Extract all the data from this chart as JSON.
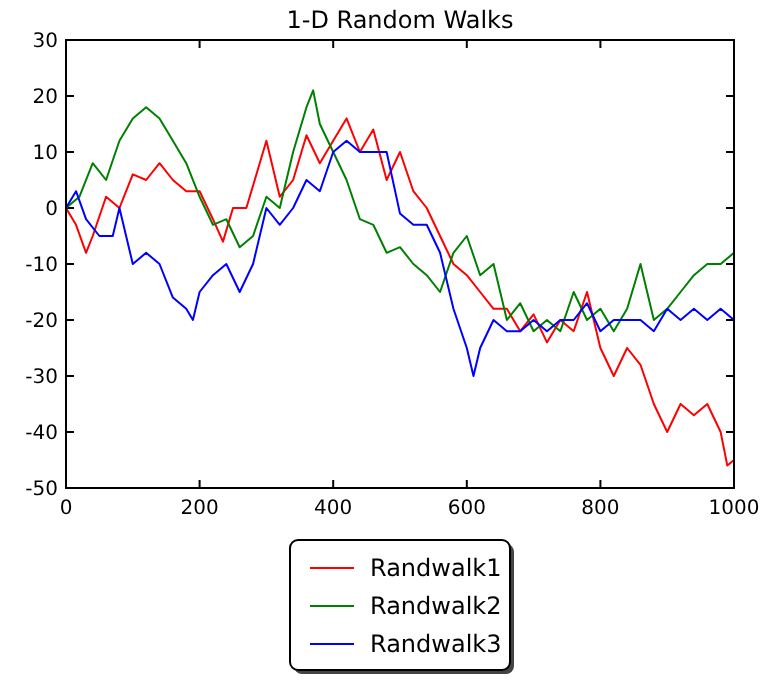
{
  "chart_data": {
    "type": "line",
    "title": "1-D Random Walks",
    "xlim": [
      0,
      1000
    ],
    "xticks": [
      0,
      200,
      400,
      600,
      800,
      1000
    ],
    "ylim": [
      -50,
      30
    ],
    "yticks": [
      -50,
      -40,
      -30,
      -20,
      -10,
      0,
      10,
      20,
      30
    ],
    "grid": false,
    "legend": "bottom",
    "series": [
      {
        "name": "Randwalk1",
        "color": "#ff0000",
        "x": [
          0,
          15,
          30,
          40,
          60,
          80,
          100,
          120,
          140,
          160,
          180,
          200,
          220,
          235,
          250,
          270,
          290,
          300,
          320,
          340,
          360,
          380,
          400,
          420,
          440,
          460,
          480,
          500,
          520,
          540,
          560,
          580,
          600,
          620,
          640,
          660,
          680,
          700,
          720,
          740,
          760,
          780,
          790,
          800,
          820,
          840,
          860,
          880,
          900,
          920,
          940,
          960,
          980,
          990,
          1000
        ],
        "values": [
          0,
          -3,
          -8,
          -5,
          2,
          0,
          6,
          5,
          8,
          5,
          3,
          3,
          -2,
          -6,
          0,
          0,
          8,
          12,
          2,
          5,
          13,
          8,
          12,
          16,
          10,
          14,
          5,
          10,
          3,
          0,
          -5,
          -10,
          -12,
          -15,
          -18,
          -18,
          -22,
          -19,
          -24,
          -20,
          -22,
          -15,
          -20,
          -25,
          -30,
          -25,
          -28,
          -35,
          -40,
          -35,
          -37,
          -35,
          -40,
          -46,
          -45
        ]
      },
      {
        "name": "Randwalk2",
        "color": "#008000",
        "x": [
          0,
          20,
          40,
          60,
          80,
          100,
          120,
          140,
          160,
          180,
          200,
          220,
          240,
          260,
          280,
          300,
          320,
          340,
          360,
          370,
          380,
          400,
          420,
          440,
          460,
          480,
          500,
          520,
          540,
          560,
          580,
          600,
          620,
          640,
          660,
          680,
          700,
          720,
          740,
          760,
          780,
          800,
          820,
          840,
          860,
          880,
          900,
          920,
          940,
          960,
          980,
          1000
        ],
        "values": [
          0,
          2,
          8,
          5,
          12,
          16,
          18,
          16,
          12,
          8,
          2,
          -3,
          -2,
          -7,
          -5,
          2,
          0,
          10,
          18,
          21,
          15,
          10,
          5,
          -2,
          -3,
          -8,
          -7,
          -10,
          -12,
          -15,
          -8,
          -5,
          -12,
          -10,
          -20,
          -17,
          -22,
          -20,
          -22,
          -15,
          -20,
          -18,
          -22,
          -18,
          -10,
          -20,
          -18,
          -15,
          -12,
          -10,
          -10,
          -8
        ]
      },
      {
        "name": "Randwalk3",
        "color": "#0000ff",
        "x": [
          0,
          15,
          30,
          50,
          70,
          80,
          100,
          120,
          140,
          160,
          180,
          190,
          200,
          220,
          240,
          260,
          280,
          300,
          320,
          340,
          360,
          380,
          400,
          420,
          440,
          460,
          480,
          500,
          520,
          540,
          560,
          580,
          600,
          610,
          620,
          640,
          660,
          680,
          700,
          720,
          740,
          760,
          780,
          800,
          820,
          840,
          860,
          880,
          900,
          920,
          940,
          960,
          980,
          1000
        ],
        "values": [
          0,
          3,
          -2,
          -5,
          -5,
          0,
          -10,
          -8,
          -10,
          -16,
          -18,
          -20,
          -15,
          -12,
          -10,
          -15,
          -10,
          0,
          -3,
          0,
          5,
          3,
          10,
          12,
          10,
          10,
          10,
          -1,
          -3,
          -3,
          -8,
          -18,
          -25,
          -30,
          -25,
          -20,
          -22,
          -22,
          -20,
          -22,
          -20,
          -20,
          -17,
          -22,
          -20,
          -20,
          -20,
          -22,
          -18,
          -20,
          -18,
          -20,
          -18,
          -20
        ]
      }
    ]
  }
}
